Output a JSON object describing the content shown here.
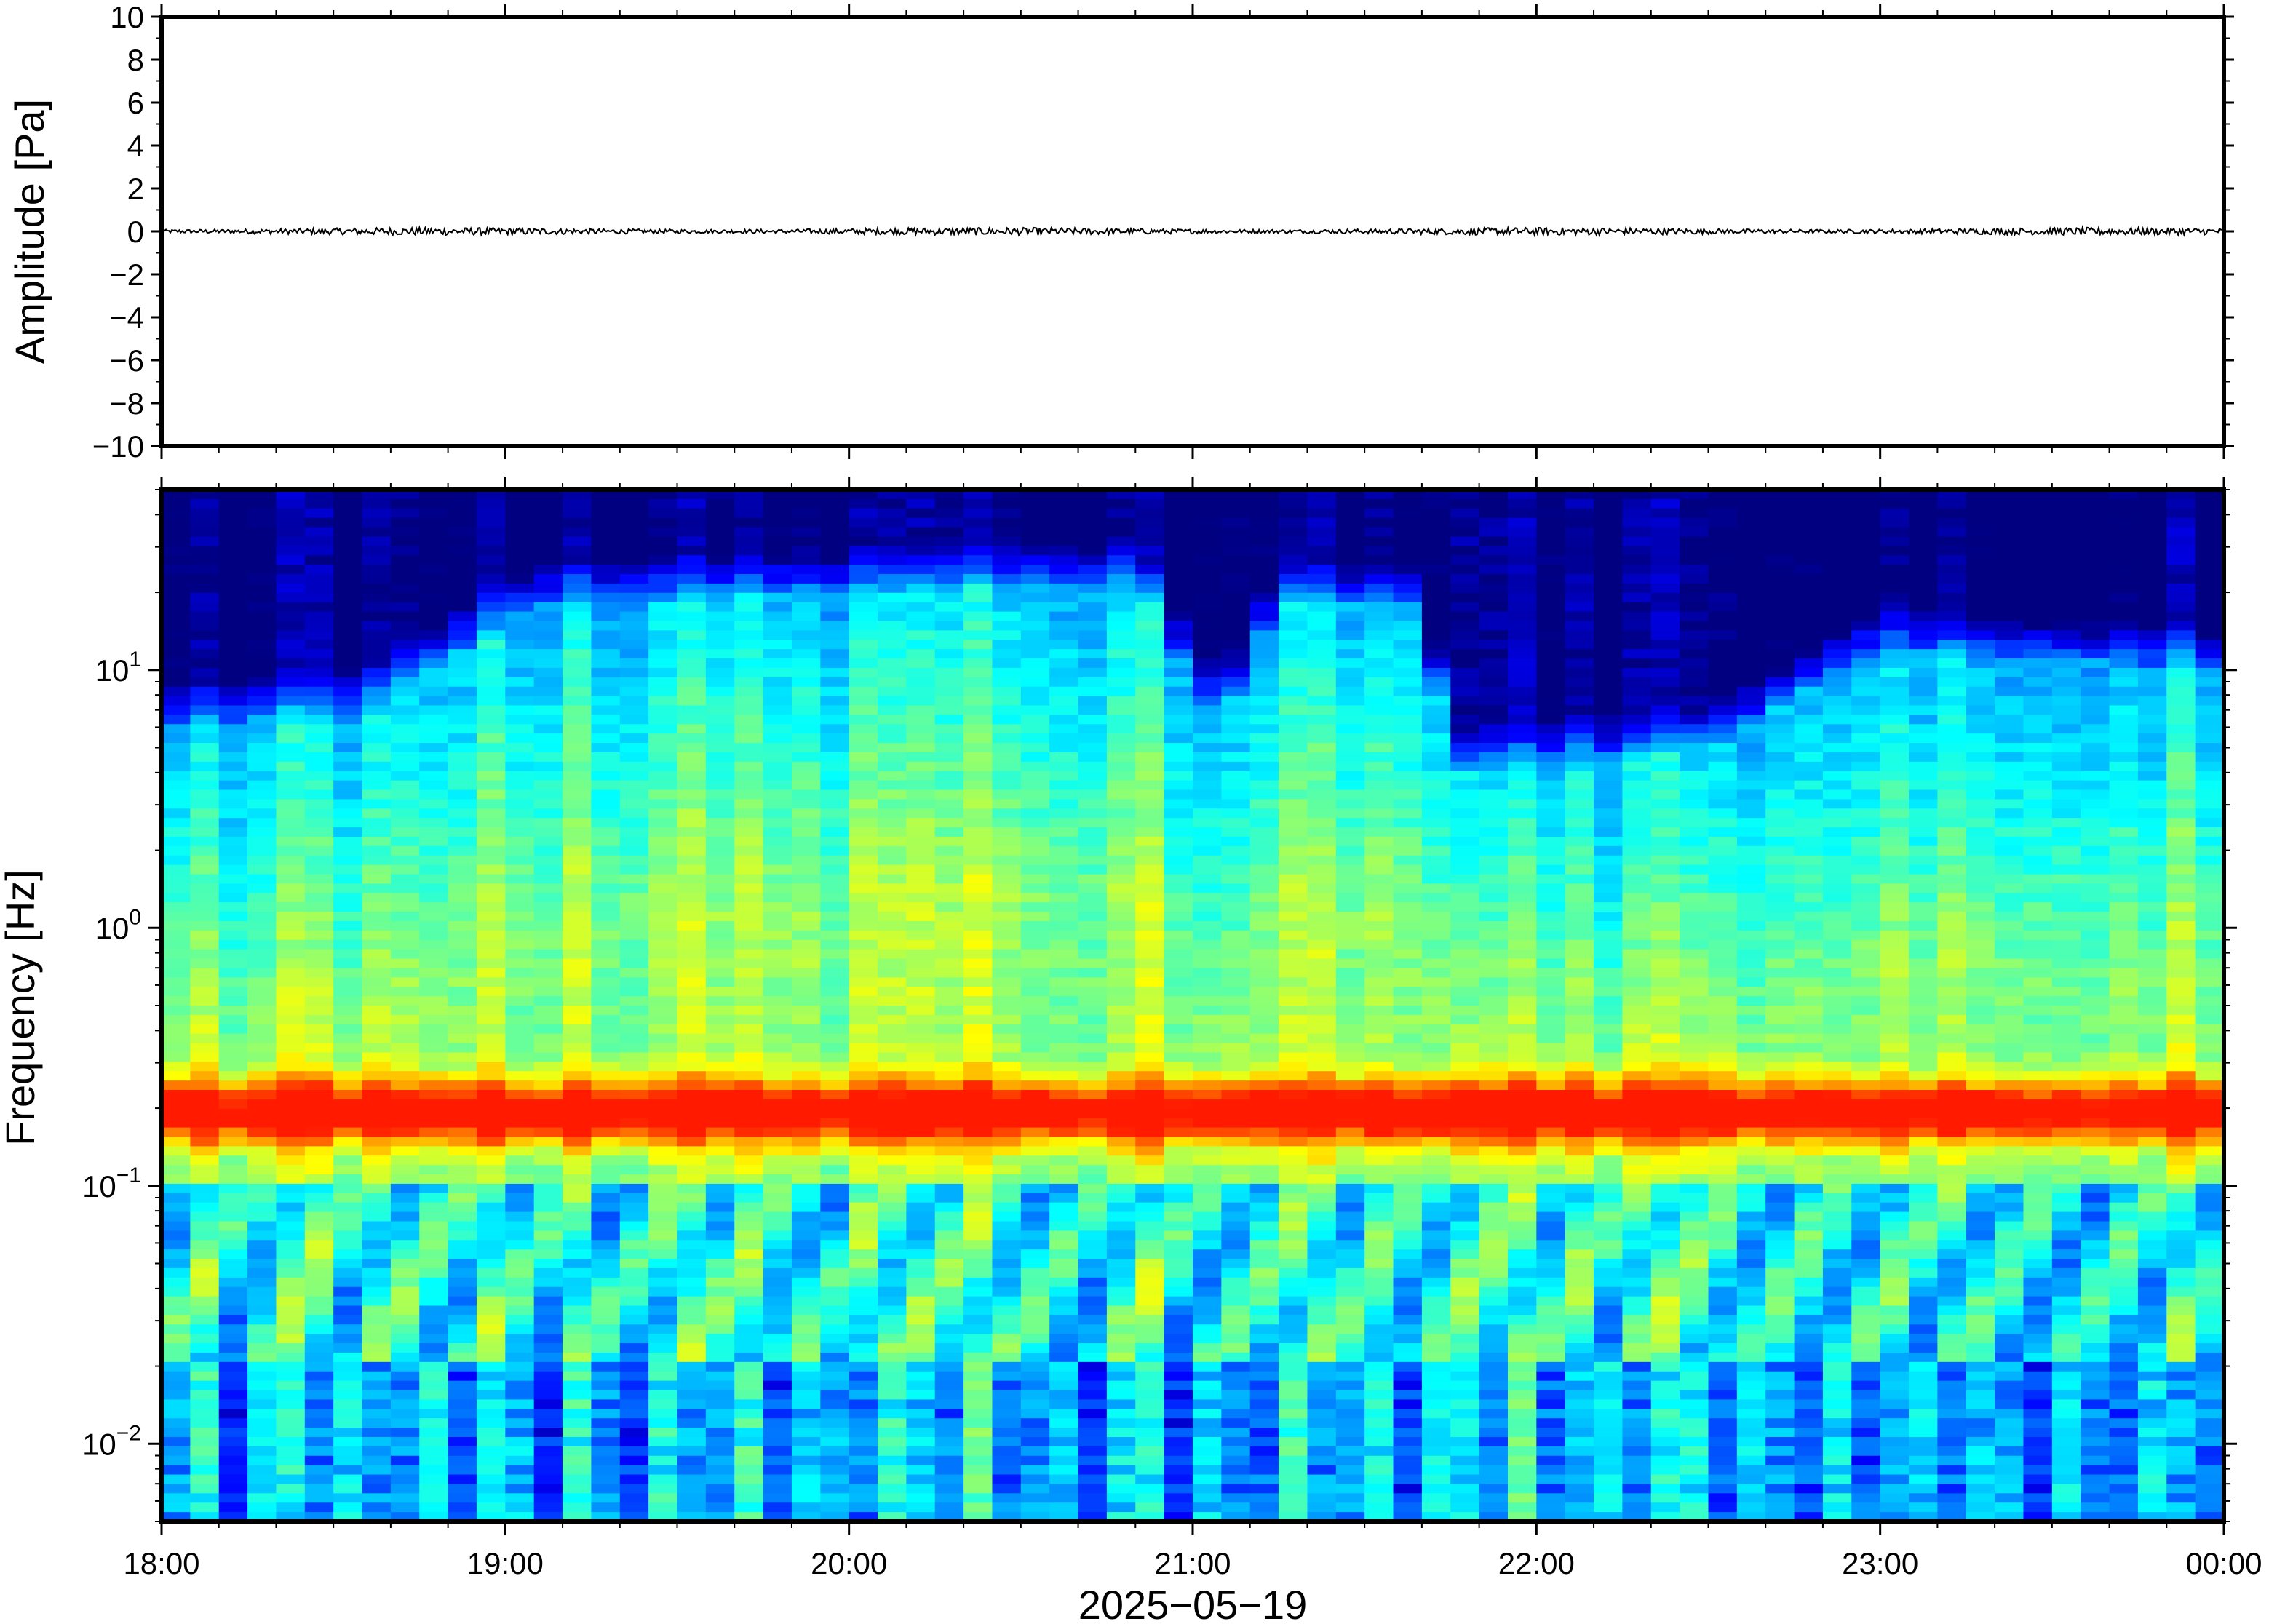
{
  "chart_data": [
    {
      "type": "line",
      "panel": "waveform",
      "ylabel": "Amplitude [Pa]",
      "ylim": [
        -10,
        10
      ],
      "yticks": [
        10,
        8,
        6,
        4,
        2,
        0,
        -2,
        -4,
        -6,
        -8,
        -10
      ],
      "ytick_labels": [
        "10",
        "8",
        "6",
        "4",
        "2",
        "0",
        "−2",
        "−4",
        "−6",
        "−8",
        "−10"
      ],
      "series_description": "pressure trace near 0 Pa across the full time window",
      "approx_amplitude_pa": 0.15,
      "xlim": [
        "18:00",
        "00:00"
      ]
    },
    {
      "type": "heatmap",
      "panel": "spectrogram",
      "ylabel": "Frequency [Hz]",
      "yscale": "log",
      "ylim": [
        0.005,
        50
      ],
      "yticks": [
        10,
        1,
        0.1,
        0.01
      ],
      "ytick_labels": [
        {
          "base": "10",
          "exp": "1"
        },
        {
          "base": "10",
          "exp": "0"
        },
        {
          "base": "10",
          "exp": "−1"
        },
        {
          "base": "10",
          "exp": "−2"
        }
      ],
      "colormap": "jet",
      "xlim": [
        "18:00",
        "00:00"
      ],
      "xticks": [
        "18:00",
        "19:00",
        "20:00",
        "21:00",
        "22:00",
        "23:00",
        "00:00"
      ],
      "xlabel": "2025−05−19",
      "features": {
        "microbarom_band_hz": [
          0.15,
          0.25
        ],
        "upper_energy_cutoff_hz_by_hour": [
          {
            "time": "18:00",
            "hz": 6
          },
          {
            "time": "18:35",
            "hz": 7
          },
          {
            "time": "19:05",
            "hz": 18
          },
          {
            "time": "20:00",
            "hz": 20
          },
          {
            "time": "20:50",
            "hz": 22
          },
          {
            "time": "21:05",
            "hz": 6
          },
          {
            "time": "21:15",
            "hz": 18
          },
          {
            "time": "21:40",
            "hz": 18
          },
          {
            "time": "21:45",
            "hz": 4
          },
          {
            "time": "22:30",
            "hz": 5
          },
          {
            "time": "23:00",
            "hz": 12
          },
          {
            "time": "00:00",
            "hz": 10
          }
        ]
      }
    }
  ]
}
